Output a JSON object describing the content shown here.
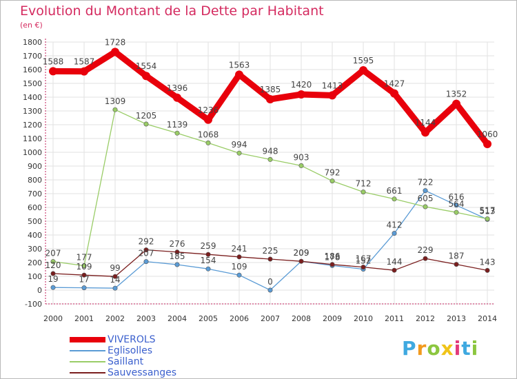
{
  "title": "Evolution du Montant de la Dette par Habitant",
  "subtitle": "(en €)",
  "logo": {
    "text": "Proxiti",
    "letters": [
      "P",
      "r",
      "o",
      "x",
      "i",
      "t",
      "i"
    ],
    "colors": [
      "#3fa9e0",
      "#f29a1e",
      "#8cc63f",
      "#f0c419",
      "#e2397b",
      "#3fa9e0",
      "#8cc63f"
    ]
  },
  "chart_data": {
    "type": "line",
    "title": "Evolution du Montant de la Dette par Habitant",
    "ylabel": "(en €)",
    "xlabel": "",
    "x": [
      "2000",
      "2001",
      "2002",
      "2003",
      "2004",
      "2005",
      "2006",
      "2007",
      "2008",
      "2009",
      "2010",
      "2011",
      "2012",
      "2013",
      "2014"
    ],
    "ylim": [
      -100,
      1800
    ],
    "yticks": [
      "-100",
      "0",
      "100",
      "200",
      "300",
      "400",
      "500",
      "600",
      "700",
      "800",
      "900",
      "1000",
      "1100",
      "1200",
      "1300",
      "1400",
      "1500",
      "1600",
      "1700",
      "1800"
    ],
    "grid": true,
    "legend_position": "bottom-left",
    "series": [
      {
        "name": "VIVEROLS",
        "color": "#e8000b",
        "values": [
          1588,
          1587,
          1728,
          1554,
          1396,
          1236,
          1563,
          1385,
          1420,
          1413,
          1595,
          1427,
          1144,
          1352,
          1060
        ],
        "labels": [
          "1588",
          "1587",
          "1728",
          "1554",
          "1396",
          "1236",
          "1563",
          "1385",
          "1420",
          "1413",
          "1595",
          "1427",
          "1144",
          "1352",
          "1060"
        ]
      },
      {
        "name": "Eglisolles",
        "color": "#5a9bd5",
        "values": [
          19,
          17,
          14,
          207,
          185,
          154,
          109,
          0,
          209,
          178,
          152,
          412,
          722,
          616,
          513
        ],
        "labels": [
          "19",
          "17",
          "14",
          "207",
          "185",
          "154",
          "109",
          "0",
          "209",
          "178",
          "152",
          "412",
          "722",
          "616",
          "513"
        ]
      },
      {
        "name": "Saillant",
        "color": "#99cc66",
        "values": [
          207,
          177,
          1309,
          1205,
          1139,
          1068,
          994,
          948,
          903,
          792,
          712,
          661,
          605,
          564,
          517
        ],
        "labels": [
          "207",
          "177",
          "1309",
          "1205",
          "1139",
          "1068",
          "994",
          "948",
          "903",
          "792",
          "712",
          "661",
          "605",
          "564",
          "517"
        ]
      },
      {
        "name": "Sauvessanges",
        "color": "#7a1e1e",
        "values": [
          120,
          109,
          99,
          292,
          276,
          259,
          241,
          225,
          209,
          186,
          167,
          144,
          229,
          187,
          143
        ],
        "labels": [
          "120",
          "109",
          "99",
          "292",
          "276",
          "259",
          "241",
          "225",
          "209",
          "186",
          "167",
          "144",
          "229",
          "187",
          "143"
        ]
      }
    ]
  }
}
